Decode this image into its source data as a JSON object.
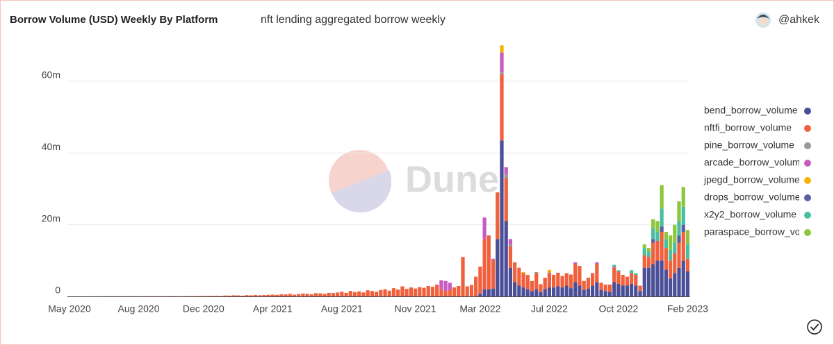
{
  "header": {
    "author": "@ahkek"
  },
  "watermark": "Dune",
  "chart_data": {
    "type": "stacked-bar",
    "title": "Borrow Volume (USD) Weekly By Platform",
    "subtitle": "nft lending aggregated borrow weekly",
    "ylim": [
      0,
      70000000
    ],
    "yticks": [
      0,
      {
        "value": 20000000,
        "label": "20m"
      },
      {
        "value": 40000000,
        "label": "40m"
      },
      {
        "value": 60000000,
        "label": "60m"
      }
    ],
    "grid": true,
    "legend": "right",
    "categories": [
      "May 2020",
      null,
      null,
      null,
      null,
      null,
      null,
      null,
      null,
      null,
      null,
      null,
      null,
      null,
      null,
      null,
      "Aug 2020",
      null,
      null,
      null,
      null,
      null,
      null,
      null,
      null,
      null,
      null,
      null,
      null,
      null,
      null,
      "Dec 2020",
      null,
      null,
      null,
      null,
      null,
      null,
      null,
      null,
      null,
      null,
      null,
      null,
      null,
      null,
      null,
      "Apr 2021",
      null,
      null,
      null,
      null,
      null,
      null,
      null,
      null,
      null,
      null,
      null,
      null,
      null,
      null,
      null,
      "Aug 2021",
      null,
      null,
      null,
      null,
      null,
      null,
      null,
      null,
      null,
      null,
      null,
      null,
      null,
      null,
      null,
      null,
      "Nov 2021",
      null,
      null,
      null,
      null,
      null,
      null,
      null,
      null,
      null,
      null,
      null,
      null,
      null,
      null,
      "Mar 2022",
      null,
      null,
      null,
      null,
      null,
      null,
      null,
      null,
      null,
      null,
      null,
      null,
      null,
      null,
      null,
      "Jul 2022",
      null,
      null,
      null,
      null,
      null,
      null,
      null,
      null,
      null,
      null,
      null,
      null,
      null,
      null,
      null,
      "Oct 2022",
      null,
      null,
      null,
      null,
      null,
      null,
      null,
      null,
      null,
      null,
      null,
      null,
      null,
      null,
      null,
      "Feb 2023"
    ],
    "series": [
      {
        "name": "bend_borrow_volume",
        "color": "#4b4f97",
        "values": [
          0,
          0,
          0,
          0,
          0,
          0,
          0,
          0,
          0,
          0,
          0,
          0,
          0,
          0,
          0,
          0,
          0,
          0,
          0,
          0,
          0,
          0,
          0,
          0,
          0,
          0,
          0,
          0,
          0,
          0,
          0,
          0,
          0,
          0,
          0,
          0,
          0,
          0,
          0,
          0,
          0,
          0,
          0,
          0,
          0,
          0,
          0,
          0,
          0,
          0,
          0,
          0,
          0,
          0,
          0,
          0,
          0,
          0,
          0,
          0,
          0,
          0,
          0,
          0,
          0,
          0,
          0,
          0,
          0,
          0,
          0,
          0,
          0,
          0,
          0,
          0,
          0,
          0,
          0,
          0,
          0,
          0,
          0,
          0,
          0,
          0,
          0,
          0,
          0,
          0,
          0,
          0,
          0,
          0,
          0,
          800000,
          2000000,
          2000000,
          2200000,
          16000000,
          43500000,
          21000000,
          8000000,
          4000000,
          3000000,
          2500000,
          2000000,
          1500000,
          2000000,
          1200000,
          2000000,
          2500000,
          2500000,
          2800000,
          2500000,
          3000000,
          2300000,
          4000000,
          3000000,
          1800000,
          2200000,
          3000000,
          4000000,
          1800000,
          1500000,
          1300000,
          4000000,
          3500000,
          3000000,
          3000000,
          3500000,
          3000000,
          1500000,
          8000000,
          8000000,
          9000000,
          10000000,
          10000000,
          7500000,
          5000000,
          6500000,
          8000000,
          10000000,
          7000000
        ]
      },
      {
        "name": "nftfi_borrow_volume",
        "color": "#f0603c",
        "values": [
          20000,
          0,
          30000,
          20000,
          10000,
          20000,
          30000,
          20000,
          40000,
          30000,
          50000,
          40000,
          60000,
          50000,
          70000,
          50000,
          40000,
          60000,
          80000,
          50000,
          60000,
          70000,
          50000,
          80000,
          90000,
          60000,
          70000,
          100000,
          80000,
          90000,
          120000,
          150000,
          120000,
          180000,
          200000,
          160000,
          250000,
          220000,
          300000,
          280000,
          200000,
          350000,
          300000,
          400000,
          330000,
          380000,
          450000,
          500000,
          420000,
          600000,
          550000,
          700000,
          480000,
          650000,
          800000,
          750000,
          600000,
          900000,
          850000,
          700000,
          1000000,
          950000,
          1100000,
          1300000,
          1000000,
          1500000,
          1200000,
          1400000,
          1100000,
          1700000,
          1500000,
          1300000,
          1800000,
          2000000,
          1600000,
          2300000,
          1900000,
          2800000,
          2100000,
          2500000,
          2200000,
          2600000,
          2400000,
          2900000,
          2700000,
          3300000,
          2000000,
          1500000,
          1800000,
          2500000,
          2900000,
          11000000,
          2800000,
          3200000,
          5500000,
          7500000,
          14000000,
          15000000,
          8000000,
          13000000,
          18500000,
          12000000,
          6000000,
          5500000,
          5000000,
          4000000,
          4000000,
          2800000,
          4500000,
          2200000,
          3200000,
          4000000,
          3500000,
          3800000,
          3200000,
          3500000,
          3800000,
          5000000,
          5500000,
          2500000,
          3000000,
          3500000,
          5000000,
          2000000,
          1800000,
          2000000,
          4000000,
          3500000,
          3000000,
          2500000,
          3000000,
          3000000,
          1500000,
          3500000,
          3000000,
          6000000,
          5500000,
          8000000,
          6000000,
          5000000,
          5500000,
          7000000,
          8000000,
          3500000
        ]
      },
      {
        "name": "pine_borrow_volume",
        "color": "#999999",
        "values": [
          0,
          0,
          0,
          0,
          0,
          0,
          0,
          0,
          0,
          0,
          0,
          0,
          0,
          0,
          0,
          0,
          0,
          0,
          0,
          0,
          0,
          0,
          0,
          0,
          0,
          0,
          0,
          0,
          0,
          0,
          0,
          0,
          0,
          0,
          0,
          0,
          0,
          0,
          0,
          0,
          0,
          0,
          0,
          0,
          0,
          0,
          0,
          0,
          0,
          0,
          0,
          0,
          0,
          0,
          0,
          0,
          0,
          0,
          0,
          0,
          0,
          0,
          0,
          0,
          0,
          0,
          0,
          0,
          0,
          0,
          0,
          0,
          0,
          0,
          0,
          0,
          0,
          0,
          0,
          0,
          0,
          0,
          0,
          0,
          0,
          0,
          0,
          0,
          0,
          0,
          0,
          0,
          0,
          0,
          0,
          0,
          0,
          0,
          0,
          0,
          500000,
          1000000,
          500000,
          0,
          0,
          0,
          0,
          0,
          300000,
          0,
          0,
          200000,
          0,
          0,
          0,
          0,
          0,
          0,
          0,
          0,
          0,
          0,
          0,
          0,
          0,
          0,
          0,
          0,
          0,
          0,
          0,
          0,
          0,
          0,
          0,
          0,
          0,
          0,
          0,
          0,
          0,
          0,
          0,
          0
        ]
      },
      {
        "name": "arcade_borrow_volume",
        "color": "#c75bc1",
        "values": [
          0,
          0,
          0,
          0,
          0,
          0,
          0,
          0,
          0,
          0,
          0,
          0,
          0,
          0,
          0,
          0,
          0,
          0,
          0,
          0,
          0,
          0,
          0,
          0,
          0,
          0,
          0,
          0,
          0,
          0,
          0,
          0,
          0,
          0,
          0,
          0,
          0,
          0,
          0,
          0,
          0,
          0,
          0,
          0,
          0,
          0,
          0,
          0,
          0,
          0,
          0,
          0,
          0,
          0,
          0,
          0,
          0,
          0,
          0,
          0,
          0,
          0,
          0,
          0,
          0,
          0,
          0,
          0,
          0,
          0,
          0,
          0,
          0,
          0,
          0,
          0,
          0,
          0,
          0,
          0,
          0,
          0,
          0,
          0,
          0,
          0,
          2500000,
          2800000,
          2000000,
          0,
          0,
          0,
          0,
          0,
          0,
          0,
          6000000,
          0,
          300000,
          0,
          5500000,
          2000000,
          1500000,
          0,
          0,
          0,
          0,
          0,
          0,
          0,
          0,
          0,
          0,
          0,
          0,
          0,
          0,
          500000,
          0,
          0,
          0,
          0,
          500000,
          0,
          0,
          0,
          300000,
          0,
          0,
          0,
          0,
          0,
          0,
          0,
          0,
          0,
          0,
          0,
          0,
          0,
          0,
          0,
          0,
          0
        ]
      },
      {
        "name": "jpegd_borrow_volume",
        "color": "#f5b400",
        "values": [
          0,
          0,
          0,
          0,
          0,
          0,
          0,
          0,
          0,
          0,
          0,
          0,
          0,
          0,
          0,
          0,
          0,
          0,
          0,
          0,
          0,
          0,
          0,
          0,
          0,
          0,
          0,
          0,
          0,
          0,
          0,
          0,
          0,
          0,
          0,
          0,
          0,
          0,
          0,
          0,
          0,
          0,
          0,
          0,
          0,
          0,
          0,
          0,
          0,
          0,
          0,
          0,
          0,
          0,
          0,
          0,
          0,
          0,
          0,
          0,
          0,
          0,
          0,
          0,
          0,
          0,
          0,
          0,
          0,
          0,
          0,
          0,
          0,
          0,
          0,
          0,
          0,
          0,
          0,
          0,
          0,
          0,
          0,
          0,
          0,
          0,
          0,
          0,
          0,
          0,
          0,
          0,
          0,
          0,
          0,
          0,
          0,
          0,
          0,
          0,
          2000000,
          0,
          0,
          0,
          0,
          300000,
          0,
          0,
          0,
          0,
          0,
          700000,
          0,
          0,
          0,
          0,
          0,
          0,
          0,
          0,
          0,
          0,
          0,
          0,
          0,
          0,
          0,
          0,
          0,
          0,
          0,
          0,
          0,
          0,
          0,
          0,
          0,
          0,
          0,
          0,
          0,
          0,
          0,
          0
        ]
      },
      {
        "name": "drops_borrow_volume",
        "color": "#5a5ea8",
        "values": [
          0,
          0,
          0,
          0,
          0,
          0,
          0,
          0,
          0,
          0,
          0,
          0,
          0,
          0,
          0,
          0,
          0,
          0,
          0,
          0,
          0,
          0,
          0,
          0,
          0,
          0,
          0,
          0,
          0,
          0,
          0,
          0,
          0,
          0,
          0,
          0,
          0,
          0,
          0,
          0,
          0,
          0,
          0,
          0,
          0,
          0,
          0,
          0,
          0,
          0,
          0,
          0,
          0,
          0,
          0,
          0,
          0,
          0,
          0,
          0,
          0,
          0,
          0,
          0,
          0,
          0,
          0,
          0,
          0,
          0,
          0,
          0,
          0,
          0,
          0,
          0,
          0,
          0,
          0,
          0,
          0,
          0,
          0,
          0,
          0,
          0,
          0,
          0,
          0,
          0,
          0,
          0,
          0,
          0,
          0,
          0,
          0,
          0,
          0,
          0,
          0,
          0,
          0,
          0,
          0,
          0,
          0,
          0,
          0,
          0,
          0,
          0,
          0,
          0,
          0,
          0,
          0,
          0,
          0,
          0,
          0,
          0,
          0,
          0,
          0,
          0,
          0,
          0,
          0,
          0,
          0,
          0,
          0,
          0,
          0,
          1000000,
          0,
          1500000,
          0,
          0,
          0,
          2000000,
          2000000,
          0
        ]
      },
      {
        "name": "x2y2_borrow_volume",
        "color": "#48bfa3",
        "values": [
          0,
          0,
          0,
          0,
          0,
          0,
          0,
          0,
          0,
          0,
          0,
          0,
          0,
          0,
          0,
          0,
          0,
          0,
          0,
          0,
          0,
          0,
          0,
          0,
          0,
          0,
          0,
          0,
          0,
          0,
          0,
          0,
          0,
          0,
          0,
          0,
          0,
          0,
          0,
          0,
          0,
          0,
          0,
          0,
          0,
          0,
          0,
          0,
          0,
          0,
          0,
          0,
          0,
          0,
          0,
          0,
          0,
          0,
          0,
          0,
          0,
          0,
          0,
          0,
          0,
          0,
          0,
          0,
          0,
          0,
          0,
          0,
          0,
          0,
          0,
          0,
          0,
          0,
          0,
          0,
          0,
          0,
          0,
          0,
          0,
          0,
          0,
          0,
          0,
          0,
          0,
          0,
          0,
          0,
          0,
          0,
          0,
          0,
          0,
          0,
          0,
          0,
          0,
          0,
          0,
          0,
          0,
          0,
          0,
          0,
          0,
          0,
          0,
          0,
          0,
          0,
          0,
          0,
          0,
          0,
          0,
          0,
          0,
          0,
          0,
          0,
          500000,
          300000,
          0,
          0,
          800000,
          500000,
          0,
          2000000,
          1500000,
          3000000,
          2500000,
          5000000,
          2500000,
          3000000,
          3000000,
          4000000,
          5000000,
          4000000
        ]
      },
      {
        "name": "paraspace_borrow_volume",
        "color": "#8cc63f",
        "values": [
          0,
          0,
          0,
          0,
          0,
          0,
          0,
          0,
          0,
          0,
          0,
          0,
          0,
          0,
          0,
          0,
          0,
          0,
          0,
          0,
          0,
          0,
          0,
          0,
          0,
          0,
          0,
          0,
          0,
          0,
          0,
          0,
          0,
          0,
          0,
          0,
          0,
          0,
          0,
          0,
          0,
          0,
          0,
          0,
          0,
          0,
          0,
          0,
          0,
          0,
          0,
          0,
          0,
          0,
          0,
          0,
          0,
          0,
          0,
          0,
          0,
          0,
          0,
          0,
          0,
          0,
          0,
          0,
          0,
          0,
          0,
          0,
          0,
          0,
          0,
          0,
          0,
          0,
          0,
          0,
          0,
          0,
          0,
          0,
          0,
          0,
          0,
          0,
          0,
          0,
          0,
          0,
          0,
          0,
          0,
          0,
          0,
          0,
          0,
          0,
          0,
          0,
          0,
          0,
          0,
          0,
          0,
          0,
          0,
          0,
          0,
          0,
          0,
          0,
          0,
          0,
          0,
          0,
          0,
          0,
          0,
          0,
          0,
          0,
          0,
          0,
          0,
          0,
          0,
          0,
          0,
          0,
          0,
          1000000,
          1000000,
          2500000,
          3000000,
          6500000,
          2000000,
          4000000,
          5000000,
          5500000,
          5500000,
          4000000
        ]
      }
    ]
  }
}
